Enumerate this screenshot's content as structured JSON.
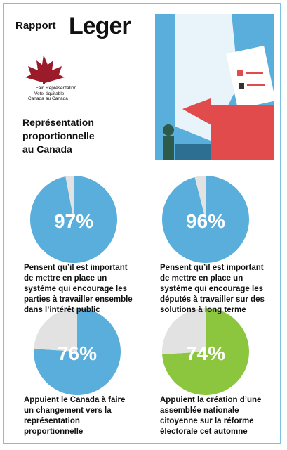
{
  "header": {
    "label": "Rapport",
    "logo": "Leger",
    "org_en": [
      "Fair",
      "Vote",
      "Canada"
    ],
    "org_fr": [
      "Représentation",
      "équitable",
      "au Canada"
    ],
    "title": [
      "Représentation",
      "proportionnelle",
      "au Canada"
    ]
  },
  "chart_data": [
    {
      "type": "pie",
      "values": [
        97,
        3
      ],
      "value_labels": [
        "97%",
        null
      ],
      "colors": [
        "#5aaedc",
        "#e2e2e2"
      ],
      "caption": "Pensent qu’il est important de mettre en place un système qui encourage les parties à travailler ensemble dans l’intérêt public"
    },
    {
      "type": "pie",
      "values": [
        96,
        4
      ],
      "value_labels": [
        "96%",
        null
      ],
      "colors": [
        "#5aaedc",
        "#e2e2e2"
      ],
      "caption": "Pensent qu’il est important de mettre en place un système qui encourage les députés à travailler sur des solutions à long terme"
    },
    {
      "type": "pie",
      "values": [
        76,
        24
      ],
      "value_labels": [
        "76%",
        null
      ],
      "colors": [
        "#5aaedc",
        "#e2e2e2"
      ],
      "caption": "Appuient le Canada à faire un changement vers la représentation proportionnelle"
    },
    {
      "type": "pie",
      "values": [
        74,
        26
      ],
      "value_labels": [
        "74%",
        null
      ],
      "colors": [
        "#8cc63f",
        "#e2e2e2"
      ],
      "caption": "Appuient la création d’une assemblée nationale citoyenne sur la réforme électorale cet automne"
    }
  ]
}
